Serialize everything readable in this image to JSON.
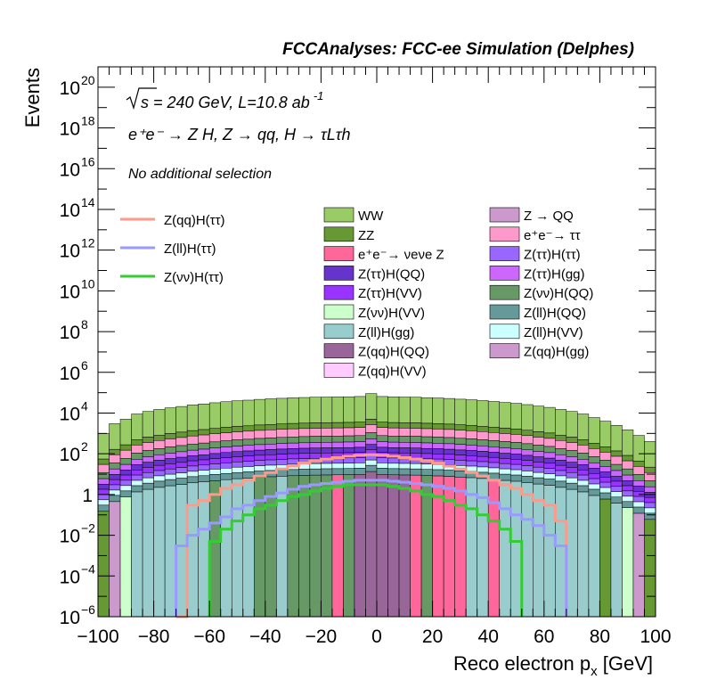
{
  "chart_data": {
    "type": "histogram-stacked",
    "title": "FCCAnalyses: FCC-ee Simulation (Delphes)",
    "xlabel": "Reco electron p",
    "xlabel_sub": "x",
    "xlabel_unit": "[GeV]",
    "ylabel": "Events",
    "xlim": [
      -100,
      100
    ],
    "ylim": [
      1e-06,
      1e+21
    ],
    "yscale": "log",
    "grid": false,
    "x_ticks": [
      -100,
      -80,
      -60,
      -40,
      -20,
      0,
      20,
      40,
      60,
      80,
      100
    ],
    "x_tick_labels": [
      "−100",
      "−80",
      "−60",
      "−40",
      "−20",
      "0",
      "20",
      "40",
      "60",
      "80",
      "100"
    ],
    "y_ticks": [
      {
        "value": 1e-06,
        "mant": "10",
        "exp": "−6"
      },
      {
        "value": 0.0001,
        "mant": "10",
        "exp": "−4"
      },
      {
        "value": 0.01,
        "mant": "10",
        "exp": "−2"
      },
      {
        "value": 1,
        "mant": "1",
        "exp": ""
      },
      {
        "value": 100.0,
        "mant": "10",
        "exp": "2"
      },
      {
        "value": 10000.0,
        "mant": "10",
        "exp": "4"
      },
      {
        "value": 1000000.0,
        "mant": "10",
        "exp": "6"
      },
      {
        "value": 100000000.0,
        "mant": "10",
        "exp": "8"
      },
      {
        "value": 10000000000.0,
        "mant": "10",
        "exp": "10"
      },
      {
        "value": 1000000000000.0,
        "mant": "10",
        "exp": "12"
      },
      {
        "value": 100000000000000.0,
        "mant": "10",
        "exp": "14"
      },
      {
        "value": 1e+16,
        "mant": "10",
        "exp": "16"
      },
      {
        "value": 1e+18,
        "mant": "10",
        "exp": "18"
      },
      {
        "value": 1e+20,
        "mant": "10",
        "exp": "20"
      }
    ],
    "annotations": {
      "energy_text": "s = 240 GeV, L=10.8 ab",
      "energy_sup": "-1",
      "process_text": "e⁺e⁻ → Z H, Z → qq, H → τLτh",
      "selection_text": "No additional selection"
    },
    "legend_placement": "top",
    "signal_series": [
      {
        "name": "Z(qq)H(ττ)",
        "color": "#ff9a8a"
      },
      {
        "name": "Z(ll)H(ττ)",
        "color": "#9999ff"
      },
      {
        "name": "Z(νν)H(ττ)",
        "color": "#33cc33"
      }
    ],
    "background_series": [
      {
        "name": "WW",
        "color": "#99cc66"
      },
      {
        "name": "ZZ",
        "color": "#669933"
      },
      {
        "name": "e⁺e⁻→ νeνe Z",
        "color": "#ff6699"
      },
      {
        "name": "Z(ττ)H(QQ)",
        "color": "#6633cc"
      },
      {
        "name": "Z(ττ)H(VV)",
        "color": "#9933ff"
      },
      {
        "name": "Z(νν)H(VV)",
        "color": "#ccffcc"
      },
      {
        "name": "Z(ll)H(gg)",
        "color": "#99cccc"
      },
      {
        "name": "Z(qq)H(QQ)",
        "color": "#996699"
      },
      {
        "name": "Z(qq)H(VV)",
        "color": "#ffccff"
      },
      {
        "name": "Z → QQ",
        "color": "#cc99cc"
      },
      {
        "name": "e⁺e⁻→ ττ",
        "color": "#ff99cc"
      },
      {
        "name": "Z(ττ)H(ττ)",
        "color": "#9966ff"
      },
      {
        "name": "Z(ττ)H(gg)",
        "color": "#cc66ff"
      },
      {
        "name": "Z(νν)H(QQ)",
        "color": "#669966"
      },
      {
        "name": "Z(ll)H(QQ)",
        "color": "#669999"
      },
      {
        "name": "Z(ll)H(VV)",
        "color": "#ccffff"
      },
      {
        "name": "Z(qq)H(gg)",
        "color": "#cc99cc"
      }
    ],
    "bins": {
      "edges_start": -100,
      "bin_width": 4,
      "stack_top": [
        1000,
        3000,
        5000,
        9000,
        12000,
        15000,
        18000,
        21000,
        25000,
        28000,
        32000,
        36000,
        40000,
        43000,
        47000,
        50000,
        53000,
        56000,
        58000,
        60000,
        61000,
        62000,
        63000,
        65000,
        90000,
        65000,
        62000,
        61000,
        60000,
        57000,
        55000,
        52000,
        48000,
        45000,
        41000,
        37000,
        33000,
        30000,
        26000,
        22000,
        19000,
        15000,
        12000,
        9000,
        6000,
        4000,
        2500,
        1500,
        800,
        400
      ],
      "bin_bottom_fill": [
        "#669933",
        "#cc99cc",
        "#ccffcc",
        "#99cccc",
        "#99cccc",
        "#99cccc",
        "#99cccc",
        "#99cccc",
        "#99cccc",
        "#99cccc",
        "#669966",
        "#99cccc",
        "#99cccc",
        "#99cccc",
        "#669966",
        "#669966",
        "#99cccc",
        "#669966",
        "#669966",
        "#669966",
        "#669966",
        "#ff6699",
        "#669966",
        "#996699",
        "#996699",
        "#996699",
        "#996699",
        "#996699",
        "#ff6699",
        "#669966",
        "#ff6699",
        "#ff6699",
        "#ff6699",
        "#99cccc",
        "#99cccc",
        "#ff6699",
        "#99cccc",
        "#99cccc",
        "#99cccc",
        "#99cccc",
        "#99cccc",
        "#99cccc",
        "#99cccc",
        "#99cccc",
        "#99cccc",
        "#669933",
        "#99cccc",
        "#ccffcc",
        "#cc99cc",
        "#669933"
      ],
      "signal_qq": [
        null,
        null,
        null,
        null,
        null,
        null,
        null,
        0.0,
        0.3,
        0.5,
        1.0,
        2.0,
        3.0,
        5.0,
        8.0,
        12.0,
        18.0,
        25.0,
        35.0,
        45.0,
        55.0,
        65.0,
        75.0,
        85.0,
        90.0,
        85.0,
        75.0,
        65.0,
        55.0,
        45.0,
        35.0,
        25.0,
        18.0,
        12.0,
        8.0,
        5.0,
        3.0,
        2.0,
        1.0,
        0.5,
        0.3,
        0.05,
        null,
        null,
        null,
        null,
        null,
        null,
        null,
        null
      ],
      "signal_ll": [
        null,
        null,
        null,
        null,
        null,
        null,
        null,
        0.003,
        0.01,
        0.02,
        0.04,
        0.08,
        0.2,
        0.3,
        0.5,
        0.8,
        1.2,
        1.8,
        2.5,
        3.0,
        3.5,
        4.0,
        4.5,
        5.0,
        5.0,
        5.0,
        4.5,
        4.0,
        3.5,
        3.0,
        2.5,
        2.0,
        1.5,
        1.0,
        0.7,
        0.4,
        0.2,
        0.1,
        0.06,
        0.03,
        0.01,
        0.003,
        null,
        null,
        null,
        null,
        null,
        null,
        null,
        null
      ],
      "signal_nunu": [
        null,
        null,
        null,
        null,
        null,
        null,
        null,
        null,
        null,
        null,
        0.005,
        0.02,
        0.05,
        0.1,
        0.2,
        0.3,
        0.5,
        0.8,
        1.0,
        1.5,
        2.0,
        2.5,
        3.0,
        3.0,
        3.0,
        3.0,
        2.5,
        2.0,
        1.5,
        1.0,
        0.8,
        0.5,
        0.3,
        0.2,
        0.1,
        0.05,
        0.02,
        0.005,
        null,
        null,
        null,
        null,
        null,
        null,
        null,
        null,
        null,
        null,
        null,
        null
      ]
    }
  }
}
